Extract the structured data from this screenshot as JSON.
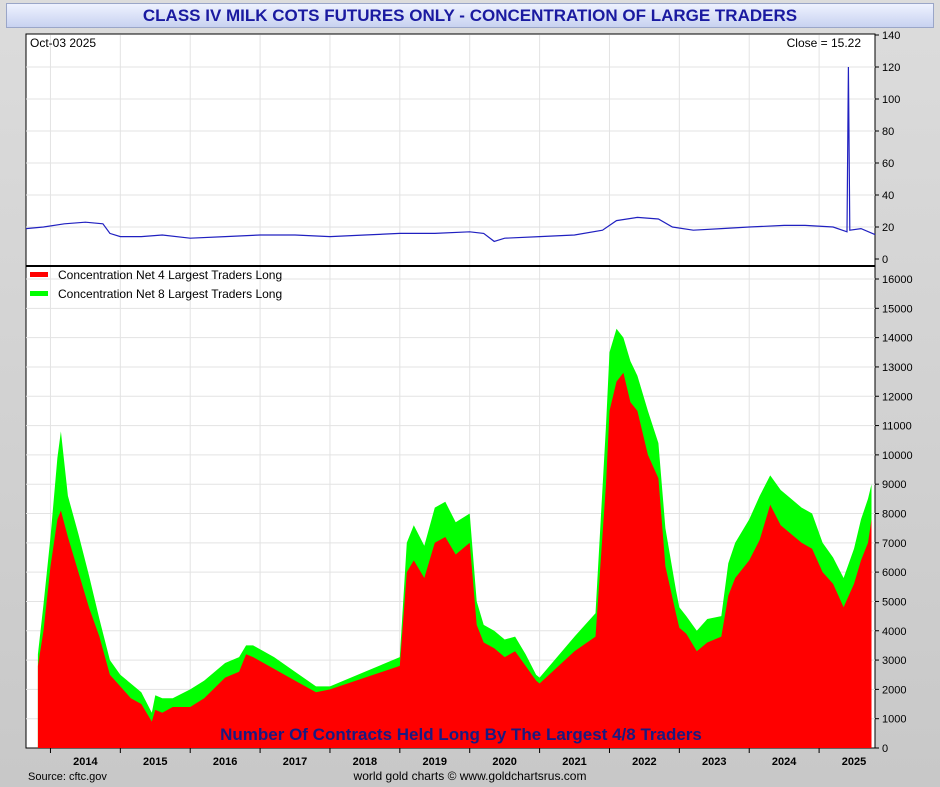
{
  "title": "CLASS IV MILK COTS FUTURES ONLY - CONCENTRATION OF LARGE TRADERS",
  "price_panel": {
    "date_label": "Oct-03  2025",
    "close_label": "Close = 15.22"
  },
  "footer": {
    "source": "Source: cftc.gov",
    "credit": "world gold charts © www.goldchartsrus.com"
  },
  "colors": {
    "price_line": "#2020c0",
    "net4": "#ff0000",
    "net8": "#00ff00",
    "annotation": "#1a1a80"
  },
  "chart_data": [
    {
      "type": "line",
      "ylim": [
        0,
        140
      ],
      "yticks": [
        0,
        20,
        40,
        60,
        80,
        100,
        120,
        140
      ],
      "xlim": [
        2013.65,
        2025.8
      ],
      "grid": true,
      "series": [
        {
          "x": [
            2013.65,
            2013.9,
            2014.2,
            2014.5,
            2014.75,
            2014.85,
            2015.0,
            2015.3,
            2015.6,
            2016.0,
            2016.5,
            2017.0,
            2017.5,
            2018.0,
            2018.5,
            2019.0,
            2019.5,
            2020.0,
            2020.2,
            2020.35,
            2020.5,
            2021.0,
            2021.5,
            2021.9,
            2022.1,
            2022.4,
            2022.7,
            2022.9,
            2023.2,
            2023.6,
            2024.0,
            2024.5,
            2024.8,
            2025.2,
            2025.4,
            2025.42,
            2025.44,
            2025.6,
            2025.8
          ],
          "values": [
            19,
            20,
            22,
            23,
            22,
            16,
            14,
            14,
            15,
            13,
            14,
            15,
            15,
            14,
            15,
            16,
            16,
            17,
            16,
            11,
            13,
            14,
            15,
            18,
            24,
            26,
            25,
            20,
            18,
            19,
            20,
            21,
            21,
            20,
            17,
            120,
            18,
            19,
            15.22
          ]
        }
      ]
    },
    {
      "type": "area",
      "ylim": [
        0,
        16000
      ],
      "yticks": [
        0,
        1000,
        2000,
        3000,
        4000,
        5000,
        6000,
        7000,
        8000,
        9000,
        10000,
        11000,
        12000,
        13000,
        14000,
        15000,
        16000
      ],
      "x_tick_labels": [
        "2014",
        "2015",
        "2016",
        "2017",
        "2018",
        "2019",
        "2020",
        "2021",
        "2022",
        "2023",
        "2024",
        "2025"
      ],
      "xlim": [
        2013.65,
        2025.8
      ],
      "grid": true,
      "legend_position": "top-left",
      "annotation": "Number Of Contracts Held Long By The Largest 4/8 Traders",
      "x": [
        2013.82,
        2013.9,
        2014.0,
        2014.1,
        2014.15,
        2014.25,
        2014.4,
        2014.55,
        2014.7,
        2014.85,
        2015.0,
        2015.15,
        2015.3,
        2015.45,
        2015.5,
        2015.6,
        2015.75,
        2016.0,
        2016.2,
        2016.5,
        2016.7,
        2016.8,
        2016.9,
        2017.2,
        2017.5,
        2017.8,
        2018.0,
        2018.5,
        2019.0,
        2019.1,
        2019.2,
        2019.35,
        2019.5,
        2019.65,
        2019.8,
        2020.0,
        2020.1,
        2020.2,
        2020.35,
        2020.5,
        2020.65,
        2020.8,
        2020.95,
        2021.0,
        2021.5,
        2021.8,
        2021.95,
        2022.0,
        2022.1,
        2022.2,
        2022.3,
        2022.4,
        2022.55,
        2022.7,
        2022.8,
        2022.95,
        2023.0,
        2023.1,
        2023.25,
        2023.4,
        2023.6,
        2023.7,
        2023.8,
        2024.0,
        2024.15,
        2024.3,
        2024.45,
        2024.6,
        2024.75,
        2024.9,
        2025.05,
        2025.2,
        2025.35,
        2025.5,
        2025.6,
        2025.7,
        2025.75
      ],
      "series": [
        {
          "name": "Concentration Net 4 Largest Traders Long",
          "values": [
            2800,
            4000,
            6200,
            7800,
            8100,
            7200,
            6000,
            4800,
            3800,
            2500,
            2100,
            1700,
            1500,
            900,
            1300,
            1200,
            1400,
            1400,
            1700,
            2400,
            2600,
            3200,
            3100,
            2700,
            2300,
            1900,
            2000,
            2400,
            2800,
            6000,
            6400,
            5800,
            7000,
            7200,
            6600,
            7000,
            4200,
            3600,
            3400,
            3100,
            3300,
            2800,
            2300,
            2200,
            3300,
            3800,
            9000,
            11500,
            12500,
            12800,
            11800,
            11500,
            10000,
            9200,
            6200,
            4600,
            4100,
            3900,
            3300,
            3600,
            3800,
            5200,
            5800,
            6400,
            7100,
            8300,
            7600,
            7300,
            7000,
            6800,
            6000,
            5600,
            4800,
            5600,
            6400,
            7000,
            7800
          ]
        },
        {
          "name": "Concentration Net 8 Largest Traders Long",
          "values": [
            3200,
            4900,
            7200,
            9900,
            10800,
            8600,
            7300,
            5900,
            4400,
            3000,
            2500,
            2200,
            1900,
            1200,
            1800,
            1700,
            1700,
            2000,
            2300,
            2900,
            3100,
            3500,
            3500,
            3100,
            2600,
            2100,
            2100,
            2600,
            3100,
            7000,
            7600,
            6900,
            8200,
            8400,
            7700,
            8000,
            5000,
            4200,
            4000,
            3700,
            3800,
            3200,
            2500,
            2400,
            3800,
            4600,
            11000,
            13500,
            14300,
            14000,
            13200,
            12700,
            11500,
            10400,
            7500,
            5400,
            4800,
            4500,
            4000,
            4400,
            4500,
            6300,
            7000,
            7800,
            8600,
            9300,
            8800,
            8500,
            8200,
            8000,
            7000,
            6500,
            5800,
            6800,
            7800,
            8500,
            9000
          ]
        }
      ]
    }
  ]
}
